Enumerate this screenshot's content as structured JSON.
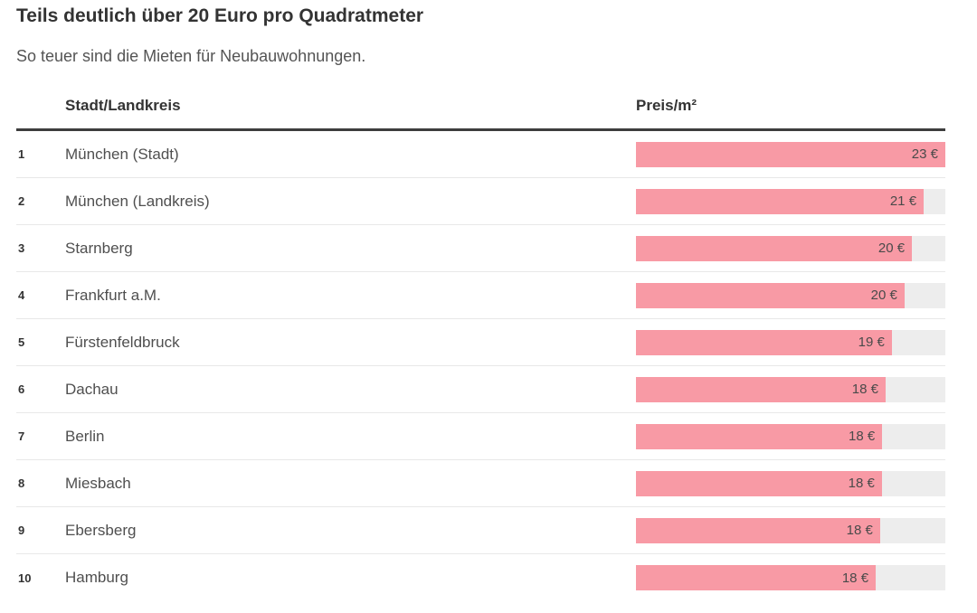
{
  "chart_data": {
    "type": "bar",
    "orientation": "horizontal",
    "title": "Teils deutlich über 20 Euro pro Quadratmeter",
    "subtitle": "So teuer sind die Mieten für Neubauwohnungen.",
    "columns": [
      "Stadt/Landkreis",
      "Preis/m²"
    ],
    "unit": "€",
    "xlim": [
      0,
      23
    ],
    "grid": false,
    "legend": false,
    "rows": [
      {
        "rank": "1",
        "city": "München (Stadt)",
        "value": 23,
        "label": "23 €",
        "bar_fraction": 1.0
      },
      {
        "rank": "2",
        "city": "München (Landkreis)",
        "value": 21,
        "label": "21 €",
        "bar_fraction": 0.93
      },
      {
        "rank": "3",
        "city": "Starnberg",
        "value": 20,
        "label": "20 €",
        "bar_fraction": 0.892
      },
      {
        "rank": "4",
        "city": "Frankfurt a.M.",
        "value": 20,
        "label": "20 €",
        "bar_fraction": 0.868
      },
      {
        "rank": "5",
        "city": "Fürstenfeldbruck",
        "value": 19,
        "label": "19 €",
        "bar_fraction": 0.827
      },
      {
        "rank": "6",
        "city": "Dachau",
        "value": 18,
        "label": "18 €",
        "bar_fraction": 0.807
      },
      {
        "rank": "7",
        "city": "Berlin",
        "value": 18,
        "label": "18 €",
        "bar_fraction": 0.796
      },
      {
        "rank": "8",
        "city": "Miesbach",
        "value": 18,
        "label": "18 €",
        "bar_fraction": 0.795
      },
      {
        "rank": "9",
        "city": "Ebersberg",
        "value": 18,
        "label": "18 €",
        "bar_fraction": 0.789
      },
      {
        "rank": "10",
        "city": "Hamburg",
        "value": 18,
        "label": "18 €",
        "bar_fraction": 0.775
      }
    ],
    "colors": {
      "bar": "#f89aa5",
      "track": "#ededed",
      "header_rule": "#3d3d3d",
      "row_separator": "#e8e8e8",
      "title_text": "#333333",
      "subtitle_text": "#545454",
      "value_text": "#4a4a4a"
    }
  }
}
